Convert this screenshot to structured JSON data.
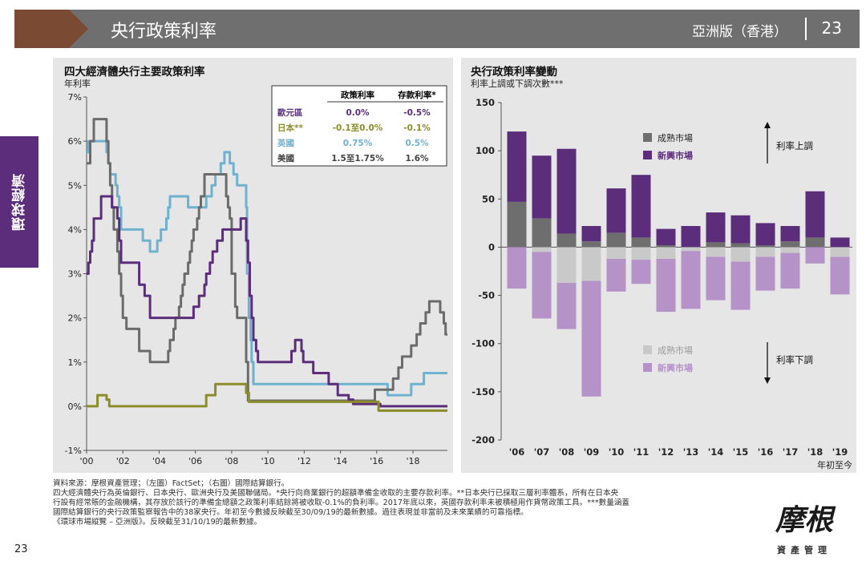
{
  "header": {
    "title": "央行政策利率",
    "edition": "亞洲版（香港）",
    "page_number": "23",
    "colors": {
      "bar": "#6f6f6f",
      "chevron": "#7a4a32"
    }
  },
  "side_tab": {
    "label": "環球經濟",
    "color": "#5b2d7a"
  },
  "left_chart": {
    "title": "四大經濟體央行主要政策利率",
    "ylabel": "年利率",
    "table": {
      "headers": [
        "政策利率",
        "存款利率*"
      ],
      "rows": [
        {
          "name": "歐元區",
          "policy": "0.0%",
          "deposit": "-0.5%",
          "color": "#5b2d7a"
        },
        {
          "name": "日本**",
          "policy": "-0.1至0.0%",
          "deposit": "-0.1%",
          "color": "#8c8c2a"
        },
        {
          "name": "英國",
          "policy": "0.75%",
          "deposit": "0.5%",
          "color": "#6fb2cf"
        },
        {
          "name": "美國",
          "policy": "1.5至1.75%",
          "deposit": "1.6%",
          "color": "#444444"
        }
      ]
    }
  },
  "right_chart": {
    "title": "央行政策利率變動",
    "ylabel": "利率上調或下調次數***",
    "xlabel": "年初至今",
    "legend_up": [
      "成熟市場",
      "新興市場"
    ],
    "legend_down": [
      "成熟市場",
      "新興市場"
    ],
    "annotation_up": "利率上調",
    "annotation_down": "利率下調"
  },
  "chart_data": [
    {
      "type": "line",
      "title": "四大經濟體央行主要政策利率",
      "ylabel": "年利率",
      "xlim": [
        2000,
        2019.9
      ],
      "ylim": [
        -1,
        7
      ],
      "x_tick_labels": [
        "'00",
        "'02",
        "'04",
        "'06",
        "'08",
        "'10",
        "'12",
        "'14",
        "'16",
        "'18"
      ],
      "x_ticks": [
        2000,
        2002,
        2004,
        2006,
        2008,
        2010,
        2012,
        2014,
        2016,
        2018
      ],
      "y_tick_labels": [
        "-1%",
        "0%",
        "1%",
        "2%",
        "3%",
        "4%",
        "5%",
        "6%",
        "7%"
      ],
      "y_ticks": [
        -1,
        0,
        1,
        2,
        3,
        4,
        5,
        6,
        7
      ],
      "series": [
        {
          "name": "美國",
          "color": "#6b6b6b",
          "step": true,
          "points": [
            [
              2000,
              5.5
            ],
            [
              2000.2,
              6
            ],
            [
              2000.4,
              6.5
            ],
            [
              2001.0,
              6.5
            ],
            [
              2001.1,
              6.0
            ],
            [
              2001.2,
              5.5
            ],
            [
              2001.3,
              5.0
            ],
            [
              2001.4,
              4.5
            ],
            [
              2001.5,
              4.0
            ],
            [
              2001.7,
              3.5
            ],
            [
              2001.8,
              3.0
            ],
            [
              2001.9,
              2.5
            ],
            [
              2002.0,
              2.0
            ],
            [
              2002.2,
              1.75
            ],
            [
              2002.9,
              1.25
            ],
            [
              2003.5,
              1.0
            ],
            [
              2004.5,
              1.25
            ],
            [
              2004.6,
              1.5
            ],
            [
              2004.8,
              1.75
            ],
            [
              2004.9,
              2.0
            ],
            [
              2005.1,
              2.25
            ],
            [
              2005.2,
              2.5
            ],
            [
              2005.3,
              2.75
            ],
            [
              2005.4,
              3.0
            ],
            [
              2005.6,
              3.25
            ],
            [
              2005.7,
              3.5
            ],
            [
              2005.8,
              3.75
            ],
            [
              2005.9,
              4.0
            ],
            [
              2006.1,
              4.25
            ],
            [
              2006.2,
              4.5
            ],
            [
              2006.3,
              4.75
            ],
            [
              2006.5,
              5.25
            ],
            [
              2007.7,
              4.75
            ],
            [
              2007.8,
              4.5
            ],
            [
              2007.9,
              4.25
            ],
            [
              2008.0,
              3.0
            ],
            [
              2008.2,
              2.25
            ],
            [
              2008.3,
              2.0
            ],
            [
              2008.8,
              1.0
            ],
            [
              2008.9,
              0.125
            ],
            [
              2015.9,
              0.375
            ],
            [
              2016.9,
              0.625
            ],
            [
              2017.2,
              0.875
            ],
            [
              2017.4,
              1.125
            ],
            [
              2017.9,
              1.375
            ],
            [
              2018.2,
              1.625
            ],
            [
              2018.4,
              1.875
            ],
            [
              2018.7,
              2.125
            ],
            [
              2018.9,
              2.375
            ],
            [
              2019.5,
              2.125
            ],
            [
              2019.7,
              1.875
            ],
            [
              2019.8,
              1.625
            ]
          ]
        },
        {
          "name": "英國",
          "color": "#6fb2cf",
          "step": true,
          "points": [
            [
              2000,
              5.75
            ],
            [
              2000.1,
              6.0
            ],
            [
              2001.1,
              5.75
            ],
            [
              2001.2,
              5.5
            ],
            [
              2001.3,
              5.25
            ],
            [
              2001.6,
              5.0
            ],
            [
              2001.7,
              4.75
            ],
            [
              2001.8,
              4.5
            ],
            [
              2001.9,
              4.0
            ],
            [
              2003.1,
              3.75
            ],
            [
              2003.5,
              3.5
            ],
            [
              2003.9,
              3.75
            ],
            [
              2004.1,
              4.0
            ],
            [
              2004.4,
              4.25
            ],
            [
              2004.5,
              4.5
            ],
            [
              2004.6,
              4.75
            ],
            [
              2005.6,
              4.5
            ],
            [
              2006.6,
              4.75
            ],
            [
              2006.9,
              5.0
            ],
            [
              2007.1,
              5.25
            ],
            [
              2007.4,
              5.5
            ],
            [
              2007.6,
              5.75
            ],
            [
              2007.9,
              5.5
            ],
            [
              2008.1,
              5.25
            ],
            [
              2008.3,
              5.0
            ],
            [
              2008.8,
              4.5
            ],
            [
              2008.85,
              3.0
            ],
            [
              2008.95,
              2.0
            ],
            [
              2009.05,
              1.5
            ],
            [
              2009.1,
              1.0
            ],
            [
              2009.2,
              0.5
            ],
            [
              2016.6,
              0.25
            ],
            [
              2017.9,
              0.5
            ],
            [
              2018.6,
              0.75
            ]
          ]
        },
        {
          "name": "歐元區",
          "color": "#5b2d7a",
          "step": true,
          "points": [
            [
              2000,
              3.0
            ],
            [
              2000.1,
              3.25
            ],
            [
              2000.2,
              3.5
            ],
            [
              2000.3,
              3.75
            ],
            [
              2000.4,
              4.25
            ],
            [
              2000.8,
              4.75
            ],
            [
              2001.4,
              4.5
            ],
            [
              2001.7,
              4.25
            ],
            [
              2001.8,
              3.75
            ],
            [
              2001.9,
              3.25
            ],
            [
              2002.9,
              2.75
            ],
            [
              2003.2,
              2.5
            ],
            [
              2003.5,
              2.0
            ],
            [
              2005.9,
              2.25
            ],
            [
              2006.2,
              2.5
            ],
            [
              2006.5,
              2.75
            ],
            [
              2006.6,
              3.0
            ],
            [
              2006.8,
              3.25
            ],
            [
              2006.95,
              3.5
            ],
            [
              2007.2,
              3.75
            ],
            [
              2007.5,
              4.0
            ],
            [
              2008.5,
              4.25
            ],
            [
              2008.8,
              3.75
            ],
            [
              2008.9,
              3.25
            ],
            [
              2009.0,
              2.5
            ],
            [
              2009.1,
              2.0
            ],
            [
              2009.2,
              1.5
            ],
            [
              2009.35,
              1.25
            ],
            [
              2009.45,
              1.0
            ],
            [
              2011.3,
              1.25
            ],
            [
              2011.5,
              1.5
            ],
            [
              2011.85,
              1.25
            ],
            [
              2011.95,
              1.0
            ],
            [
              2012.5,
              0.75
            ],
            [
              2013.35,
              0.5
            ],
            [
              2013.85,
              0.25
            ],
            [
              2014.45,
              0.15
            ],
            [
              2014.7,
              0.05
            ],
            [
              2016.2,
              0.0
            ]
          ]
        },
        {
          "name": "日本**",
          "color": "#8c8c2a",
          "step": true,
          "points": [
            [
              2000,
              0.0
            ],
            [
              2000.6,
              0.25
            ],
            [
              2001.1,
              0.15
            ],
            [
              2001.25,
              0.0
            ],
            [
              2006.6,
              0.25
            ],
            [
              2007.1,
              0.5
            ],
            [
              2008.8,
              0.3
            ],
            [
              2008.95,
              0.1
            ],
            [
              2016.1,
              -0.1
            ]
          ]
        }
      ]
    },
    {
      "type": "bar",
      "title": "央行政策利率變動",
      "ylabel": "利率上調或下調次數***",
      "xlabel": "年初至今",
      "categories": [
        "'06",
        "'07",
        "'08",
        "'09",
        "'10",
        "'11",
        "'12",
        "'13",
        "'14",
        "'15",
        "'16",
        "'17",
        "'18",
        "'19"
      ],
      "ylim": [
        -200,
        150
      ],
      "y_ticks": [
        -200,
        -150,
        -100,
        -50,
        0,
        50,
        100,
        150
      ],
      "series": [
        {
          "name": "成熟市場",
          "direction": "上調",
          "color": "#6e6e6e",
          "values": [
            47,
            30,
            14,
            6,
            15,
            10,
            2,
            0,
            5,
            4,
            2,
            6,
            10,
            0
          ]
        },
        {
          "name": "新興市場",
          "direction": "上調",
          "color": "#5b2d7a",
          "values": [
            73,
            65,
            88,
            16,
            46,
            65,
            17,
            22,
            31,
            29,
            23,
            16,
            48,
            10
          ]
        },
        {
          "name": "成熟市場",
          "direction": "下調",
          "color": "#c9c9c9",
          "values": [
            0,
            -5,
            -37,
            -35,
            -12,
            -13,
            -12,
            -4,
            -10,
            -15,
            -10,
            -6,
            0,
            -10
          ]
        },
        {
          "name": "新興市場",
          "direction": "下調",
          "color": "#b592c8",
          "values": [
            -43,
            -69,
            -48,
            -120,
            -34,
            -25,
            -55,
            -60,
            -45,
            -50,
            -35,
            -37,
            -17,
            -39
          ]
        }
      ]
    }
  ],
  "footer": {
    "lines": [
      "資料來源：摩根資產管理；（左圖）FactSet；（右圖）國際結算銀行。",
      "四大經濟體央行為英倫銀行、日本央行、歐洲央行及美國聯儲局。*央行向商業銀行的超額準備金收取的主要存款利率。**日本央行已採取三層利率體系，所有在日本央",
      "行設有經常賬的金融機構，其存放於該行的準備金總額之政策利率結餘將被收取-0.1%的負利率。2017年底以來，英國存款利率未被積極用作貨幣政策工具。***數量涵蓋",
      "國際結算銀行的央行政策監察報告中的38家央行。年初至今數據反映截至30/09/19的最新數據。過往表現並非當前及未來業績的可靠指標。",
      "《環球市場縱覽 – 亞洲版》。反映截至31/10/19的最新數據。"
    ],
    "page_number": "23"
  },
  "logo": {
    "main": "摩根",
    "sub": "資產管理"
  }
}
